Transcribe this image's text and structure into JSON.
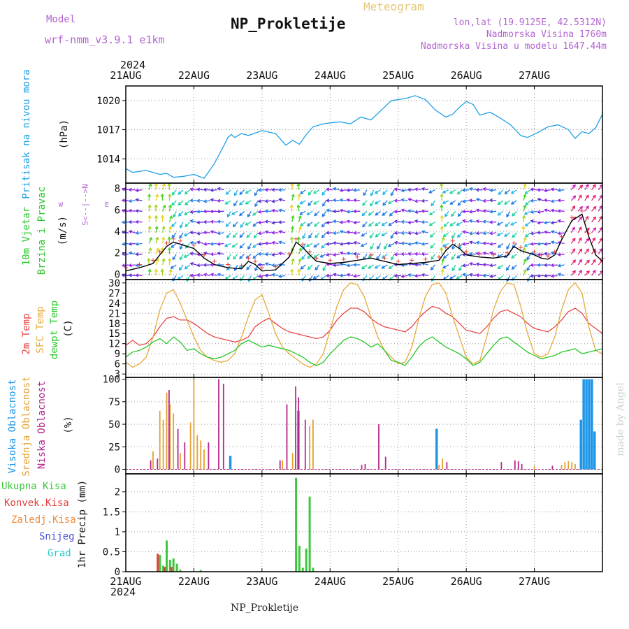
{
  "header": {
    "model_label": "Model",
    "model_name": "wrf-nmm_v3.9.1 e1km",
    "program": "Meteogram",
    "station": "NP_Prokletije",
    "lonlat": "lon,lat (19.9125E, 42.5312N)",
    "elevation": "Nadmorska Visina 1760m",
    "model_elevation": "Nadmorska Visina u modelu 1647.44m",
    "credit": "made by Angel",
    "footer_station": "NP_Prokletije"
  },
  "colors": {
    "pressure": "#1ea0e6",
    "temp2m": "#e64646",
    "sfc_temp": "#e6aa3c",
    "dewpoint": "#28c828",
    "wind_speed": "#000000",
    "high_cloud": "#1e96e6",
    "mid_cloud": "#e6a032",
    "low_cloud": "#b4288c",
    "total_precip": "#3cc83c",
    "conv_precip": "#e63c3c",
    "frozen_precip": "#f08c3c",
    "snow": "#5050dc",
    "hail": "#28c8c8",
    "title_purple": "#b464d2",
    "meteogram_gold": "#e6c878"
  },
  "time_axis": {
    "year": "2024",
    "days": [
      "21AUG",
      "22AUG",
      "23AUG",
      "24AUG",
      "25AUG",
      "26AUG",
      "27AUG"
    ]
  },
  "chart_data": [
    {
      "type": "line",
      "title": "Pritisak na nivou mora",
      "ylabel": "(hPa)",
      "ylim": [
        1011.5,
        1021.5
      ],
      "yticks": [
        "1014",
        "1017",
        "1020"
      ],
      "grid": true,
      "series": [
        {
          "name": "Pritisak na nivou mora",
          "color": "#1ea0e6",
          "x": [
            0,
            0.1,
            0.3,
            0.5,
            0.6,
            0.7,
            0.85,
            1.0,
            1.15,
            1.3,
            1.45,
            1.5,
            1.55,
            1.6,
            1.7,
            1.8,
            2.0,
            2.2,
            2.35,
            2.45,
            2.55,
            2.65,
            2.75,
            2.9,
            3.0,
            3.15,
            3.3,
            3.45,
            3.6,
            3.75,
            3.9,
            4.1,
            4.25,
            4.4,
            4.55,
            4.7,
            4.8,
            4.9,
            5.0,
            5.1,
            5.2,
            5.35,
            5.5,
            5.65,
            5.8,
            5.9,
            6.05,
            6.2,
            6.35,
            6.5,
            6.6,
            6.7,
            6.8,
            6.9,
            7.0
          ],
          "y": [
            1013.0,
            1012.6,
            1012.8,
            1012.4,
            1012.5,
            1012.1,
            1012.2,
            1012.4,
            1012.0,
            1013.5,
            1015.5,
            1016.2,
            1016.5,
            1016.2,
            1016.6,
            1016.4,
            1016.9,
            1016.6,
            1015.4,
            1015.9,
            1015.5,
            1016.5,
            1017.3,
            1017.6,
            1017.7,
            1017.8,
            1017.6,
            1018.3,
            1018.0,
            1019.0,
            1020.0,
            1020.2,
            1020.5,
            1020.1,
            1019.0,
            1018.3,
            1018.6,
            1019.3,
            1019.9,
            1019.6,
            1018.5,
            1018.8,
            1018.2,
            1017.5,
            1016.4,
            1016.2,
            1016.7,
            1017.3,
            1017.5,
            1017.0,
            1016.1,
            1016.8,
            1016.6,
            1017.2,
            1018.6
          ]
        }
      ]
    },
    {
      "type": "line",
      "title": "10m Vjetar Brzina i Pravac",
      "ylabel": "(m/s)",
      "ylim": [
        -0.5,
        8.5
      ],
      "yticks": [
        "0",
        "2",
        "4",
        "6",
        "8"
      ],
      "grid": true,
      "series": [
        {
          "name": "Brzina",
          "color": "#000000",
          "x": [
            0,
            0.2,
            0.4,
            0.5,
            0.6,
            0.7,
            0.8,
            1.0,
            1.15,
            1.3,
            1.5,
            1.7,
            1.8,
            1.9,
            2.0,
            2.2,
            2.4,
            2.5,
            2.6,
            2.7,
            2.8,
            3.0,
            3.2,
            3.4,
            3.6,
            3.8,
            4.0,
            4.2,
            4.4,
            4.6,
            4.7,
            4.8,
            4.9,
            5.0,
            5.2,
            5.4,
            5.6,
            5.7,
            5.8,
            6.0,
            6.1,
            6.2,
            6.3,
            6.4,
            6.55,
            6.7,
            6.8,
            6.9,
            7.0
          ],
          "y": [
            0.3,
            0.6,
            1.0,
            1.8,
            2.6,
            3.0,
            2.8,
            2.4,
            1.5,
            0.9,
            0.6,
            0.5,
            1.2,
            0.9,
            0.3,
            0.4,
            1.6,
            3.0,
            2.5,
            1.8,
            1.2,
            1.0,
            1.1,
            1.3,
            1.5,
            1.2,
            0.9,
            1.0,
            1.1,
            1.3,
            2.2,
            2.8,
            2.4,
            1.8,
            1.6,
            1.5,
            1.7,
            2.6,
            2.2,
            1.8,
            1.5,
            1.4,
            1.8,
            3.2,
            5.0,
            5.6,
            3.5,
            1.8,
            1.2
          ]
        }
      ]
    },
    {
      "type": "line",
      "title": "2m Temp / SFC Temp / dewpt Temp",
      "ylabel": "(C)",
      "ylim": [
        2,
        31
      ],
      "yticks": [
        "3",
        "6",
        "9",
        "12",
        "15",
        "18",
        "21",
        "24",
        "27",
        "30"
      ],
      "grid": true,
      "series": [
        {
          "name": "2m Temp",
          "color": "#e64646",
          "x": [
            0,
            0.1,
            0.2,
            0.3,
            0.4,
            0.5,
            0.6,
            0.7,
            0.8,
            0.9,
            1.0,
            1.1,
            1.2,
            1.3,
            1.4,
            1.5,
            1.6,
            1.7,
            1.8,
            1.9,
            2.0,
            2.1,
            2.2,
            2.3,
            2.4,
            2.5,
            2.6,
            2.7,
            2.8,
            2.9,
            3.0,
            3.1,
            3.2,
            3.3,
            3.4,
            3.5,
            3.6,
            3.7,
            3.8,
            3.9,
            4.0,
            4.1,
            4.2,
            4.3,
            4.4,
            4.5,
            4.6,
            4.7,
            4.8,
            4.9,
            5.0,
            5.1,
            5.2,
            5.3,
            5.4,
            5.5,
            5.6,
            5.7,
            5.8,
            5.9,
            6.0,
            6.1,
            6.2,
            6.3,
            6.4,
            6.5,
            6.6,
            6.7,
            6.8,
            6.9,
            7.0
          ],
          "y": [
            11.5,
            13.0,
            11.5,
            12.0,
            14.0,
            17.0,
            19.5,
            20.0,
            19.0,
            19.0,
            18.0,
            16.5,
            15.0,
            14.0,
            13.5,
            13.0,
            12.5,
            13.0,
            14.0,
            17.0,
            18.5,
            19.5,
            18.0,
            16.5,
            15.5,
            15.0,
            14.5,
            14.0,
            13.5,
            14.0,
            16.0,
            19.0,
            21.0,
            22.5,
            22.5,
            21.5,
            19.5,
            18.0,
            17.0,
            16.5,
            16.0,
            15.5,
            17.0,
            19.5,
            21.5,
            23.0,
            22.5,
            21.0,
            20.0,
            18.0,
            16.0,
            15.5,
            15.0,
            17.0,
            19.5,
            21.5,
            22.0,
            21.0,
            20.0,
            18.0,
            16.5,
            16.0,
            15.5,
            17.0,
            19.0,
            21.5,
            22.5,
            21.0,
            18.0,
            16.5,
            15.0
          ]
        },
        {
          "name": "SFC Temp",
          "color": "#e6aa3c",
          "x": [
            0,
            0.1,
            0.2,
            0.3,
            0.4,
            0.5,
            0.6,
            0.7,
            0.8,
            0.9,
            1.0,
            1.1,
            1.2,
            1.3,
            1.4,
            1.5,
            1.6,
            1.7,
            1.8,
            1.9,
            2.0,
            2.1,
            2.2,
            2.3,
            2.4,
            2.5,
            2.6,
            2.7,
            2.8,
            2.9,
            3.0,
            3.1,
            3.2,
            3.3,
            3.4,
            3.5,
            3.6,
            3.7,
            3.8,
            3.9,
            4.0,
            4.1,
            4.2,
            4.3,
            4.4,
            4.5,
            4.6,
            4.7,
            4.8,
            4.9,
            5.0,
            5.1,
            5.2,
            5.3,
            5.4,
            5.5,
            5.6,
            5.7,
            5.8,
            5.9,
            6.0,
            6.1,
            6.2,
            6.3,
            6.4,
            6.5,
            6.6,
            6.7,
            6.8,
            6.9,
            7.0
          ],
          "y": [
            6.5,
            5.0,
            6.0,
            8.0,
            14.0,
            22.0,
            27.0,
            28.0,
            24.0,
            19.0,
            14.0,
            10.0,
            8.0,
            7.0,
            6.5,
            7.0,
            9.0,
            14.0,
            20.0,
            25.0,
            26.5,
            21.0,
            15.0,
            11.0,
            9.0,
            7.5,
            6.0,
            5.0,
            6.0,
            9.0,
            16.0,
            23.0,
            28.0,
            30.0,
            29.5,
            26.0,
            20.0,
            14.0,
            10.0,
            8.0,
            6.0,
            6.5,
            11.0,
            19.0,
            26.0,
            29.5,
            30.0,
            27.0,
            20.0,
            14.0,
            8.0,
            6.0,
            7.0,
            14.0,
            22.0,
            27.5,
            30.0,
            29.5,
            23.0,
            15.0,
            9.0,
            8.0,
            9.0,
            14.0,
            22.0,
            28.0,
            30.0,
            27.0,
            17.0,
            10.0,
            9.0
          ]
        },
        {
          "name": "dewpt Temp",
          "color": "#28c828",
          "x": [
            0,
            0.1,
            0.2,
            0.3,
            0.4,
            0.5,
            0.6,
            0.7,
            0.8,
            0.9,
            1.0,
            1.1,
            1.2,
            1.3,
            1.4,
            1.5,
            1.6,
            1.7,
            1.8,
            1.9,
            2.0,
            2.1,
            2.2,
            2.3,
            2.4,
            2.5,
            2.6,
            2.7,
            2.8,
            2.9,
            3.0,
            3.1,
            3.2,
            3.3,
            3.4,
            3.5,
            3.6,
            3.7,
            3.8,
            3.9,
            4.0,
            4.1,
            4.2,
            4.3,
            4.4,
            4.5,
            4.6,
            4.7,
            4.8,
            4.9,
            5.0,
            5.1,
            5.2,
            5.3,
            5.4,
            5.5,
            5.6,
            5.7,
            5.8,
            5.9,
            6.0,
            6.1,
            6.2,
            6.3,
            6.4,
            6.5,
            6.6,
            6.7,
            6.8,
            6.9,
            7.0
          ],
          "y": [
            8.0,
            9.5,
            10.0,
            11.0,
            12.5,
            13.5,
            12.0,
            14.0,
            12.5,
            10.0,
            10.5,
            9.0,
            8.0,
            7.5,
            8.0,
            9.0,
            10.0,
            12.0,
            13.0,
            12.0,
            11.0,
            11.5,
            11.0,
            10.5,
            10.0,
            9.0,
            8.0,
            6.5,
            5.5,
            6.5,
            9.0,
            11.0,
            13.0,
            14.0,
            13.5,
            12.5,
            11.0,
            12.0,
            10.0,
            7.0,
            6.5,
            5.5,
            8.0,
            11.0,
            13.0,
            14.0,
            12.5,
            11.0,
            10.0,
            9.0,
            7.5,
            5.5,
            6.5,
            9.0,
            11.5,
            13.5,
            14.0,
            12.5,
            11.0,
            9.5,
            8.5,
            7.5,
            8.0,
            8.5,
            9.5,
            10.0,
            10.5,
            9.0,
            9.5,
            10.0,
            10.5
          ]
        }
      ]
    },
    {
      "type": "bar",
      "title": "Visoka Oblacnost / Srednja Oblacnost / Niska Oblacnost",
      "ylabel": "(%)",
      "ylim": [
        -5,
        102
      ],
      "yticks": [
        "0",
        "25",
        "50",
        "75",
        "100"
      ],
      "grid": true,
      "series": [
        {
          "name": "Visoka Oblacnost",
          "color": "#1e96e6",
          "x": [
            1.55,
            2.55,
            4.58,
            6.7,
            6.74,
            6.78,
            6.82,
            6.86,
            6.9
          ],
          "values": [
            15,
            65,
            45,
            55,
            100,
            100,
            100,
            100,
            42
          ]
        },
        {
          "name": "Srednja Oblacnost",
          "color": "#e6a032",
          "x": [
            0.4,
            0.5,
            0.55,
            0.6,
            0.65,
            0.7,
            0.8,
            0.95,
            1.0,
            1.05,
            1.1,
            1.15,
            2.3,
            2.45,
            2.7,
            2.75,
            4.6,
            4.65,
            6.0,
            6.4,
            6.45,
            6.5,
            6.55,
            6.6
          ],
          "values": [
            20,
            65,
            55,
            85,
            72,
            62,
            18,
            52,
            100,
            38,
            32,
            22,
            10,
            18,
            48,
            55,
            5,
            12,
            4,
            5,
            8,
            9,
            8,
            6
          ]
        },
        {
          "name": "Niska Oblacnost",
          "color": "#b4288c",
          "x": [
            0.35,
            0.45,
            0.62,
            0.75,
            0.85,
            1.2,
            1.35,
            1.42,
            2.25,
            2.35,
            2.48,
            2.52,
            2.62,
            3.45,
            3.5,
            3.7,
            3.8,
            4.7,
            5.5,
            5.7,
            5.75,
            5.8,
            6.25
          ],
          "values": [
            10,
            12,
            88,
            45,
            30,
            30,
            100,
            95,
            10,
            72,
            92,
            80,
            55,
            5,
            6,
            50,
            14,
            8,
            8,
            10,
            9,
            6,
            4
          ]
        }
      ]
    },
    {
      "type": "bar",
      "title": "Ukupna Kisa / Konvek.Kisa / Zaledj.Kisa / Snijeg / Grad",
      "ylabel": "1hr Precip (mm)",
      "ylim": [
        0,
        2.45
      ],
      "yticks": [
        "0",
        "0.5",
        "1",
        "1.5",
        "2"
      ],
      "grid": true,
      "series": [
        {
          "name": "Ukupna Kisa",
          "color": "#3cc83c",
          "x": [
            0.5,
            0.55,
            0.6,
            0.65,
            0.7,
            0.75,
            0.8,
            1.1,
            2.5,
            2.55,
            2.6,
            2.65,
            2.7,
            2.75
          ],
          "values": [
            0.42,
            0.15,
            0.78,
            0.3,
            0.33,
            0.2,
            0.05,
            0.04,
            2.35,
            0.65,
            0.1,
            0.58,
            1.88,
            0.1
          ]
        },
        {
          "name": "Konvek.Kisa",
          "color": "#e63c3c",
          "x": [
            0.5,
            0.6,
            0.7
          ],
          "values": [
            0.45,
            0.12,
            0.12
          ]
        }
      ],
      "legend": [
        "Ukupna Kisa",
        "Konvek.Kisa",
        "Zaledj.Kisa",
        "Snijeg",
        "Grad"
      ]
    }
  ]
}
